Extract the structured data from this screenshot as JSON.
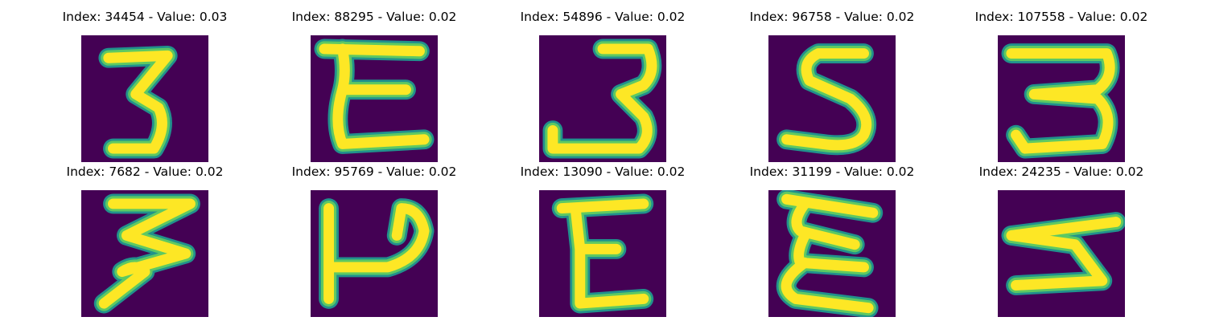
{
  "colors": {
    "background": "#440154",
    "stroke_outer": "#21918c",
    "stroke_mid": "#5ec962",
    "stroke_core": "#fde725"
  },
  "panels": [
    {
      "index": "34454",
      "value": "0.03",
      "title": "Index: 34454 - Value: 0.03",
      "glyph": "3"
    },
    {
      "index": "88295",
      "value": "0.02",
      "title": "Index: 88295 - Value: 0.02",
      "glyph": "E"
    },
    {
      "index": "54896",
      "value": "0.02",
      "title": "Index: 54896 - Value: 0.02",
      "glyph": "3"
    },
    {
      "index": "96758",
      "value": "0.02",
      "title": "Index: 96758 - Value: 0.02",
      "glyph": "S"
    },
    {
      "index": "107558",
      "value": "0.02",
      "title": "Index: 107558 - Value: 0.02",
      "glyph": "3"
    },
    {
      "index": "7682",
      "value": "0.02",
      "title": "Index: 7682 - Value: 0.02",
      "glyph": "3"
    },
    {
      "index": "95769",
      "value": "0.02",
      "title": "Index: 95769 - Value: 0.02",
      "glyph": "P"
    },
    {
      "index": "13090",
      "value": "0.02",
      "title": "Index: 13090 - Value: 0.02",
      "glyph": "E"
    },
    {
      "index": "31199",
      "value": "0.02",
      "title": "Index: 31199 - Value: 0.02",
      "glyph": "E"
    },
    {
      "index": "24235",
      "value": "0.02",
      "title": "Index: 24235 - Value: 0.02",
      "glyph": "3"
    }
  ]
}
